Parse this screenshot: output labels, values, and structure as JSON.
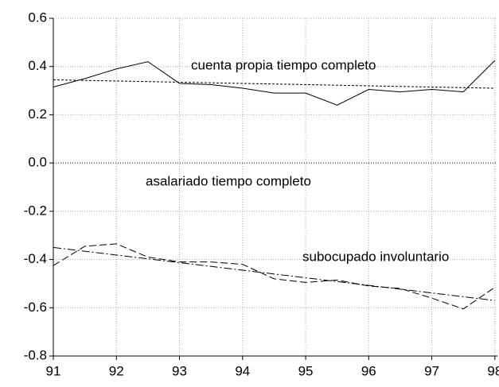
{
  "chart_data": {
    "type": "line",
    "xlim": [
      91,
      98.04
    ],
    "ylim": [
      -0.8,
      0.6
    ],
    "xticks": [
      91,
      92,
      93,
      94,
      95,
      96,
      97,
      98
    ],
    "yticks": [
      {
        "value": -0.8,
        "label": "-0.8"
      },
      {
        "value": -0.6,
        "label": "-0.6"
      },
      {
        "value": -0.4,
        "label": "-0.4"
      },
      {
        "value": -0.2,
        "label": "-0.2"
      },
      {
        "value": 0,
        "label": "0.0"
      },
      {
        "value": 0.2,
        "label": "0.2"
      },
      {
        "value": 0.4,
        "label": "0.4"
      },
      {
        "value": 0.6,
        "label": "0.6"
      }
    ],
    "grid": true,
    "zero_line": true,
    "annotations": [
      "cuenta propia tiempo completo",
      "asalariado tiempo completo",
      "subocupado involuntario"
    ],
    "series": [
      {
        "color": "#000000",
        "style": "solid",
        "x": [
          91,
          91.5,
          92,
          92.5,
          93,
          93.5,
          94,
          94.5,
          95,
          95.5,
          96,
          96.5,
          97,
          97.5,
          98
        ],
        "values": [
          0.315,
          0.35,
          0.39,
          0.42,
          0.33,
          0.325,
          0.31,
          0.29,
          0.29,
          0.24,
          0.305,
          0.295,
          0.305,
          0.295,
          0.425
        ]
      },
      {
        "color": "#000000",
        "style": "dotted",
        "x": [
          91,
          98
        ],
        "values": [
          0.345,
          0.31
        ]
      },
      {
        "color": "#000000",
        "style": "dashed",
        "x": [
          91,
          91.5,
          92,
          92.5,
          93,
          93.5,
          94,
          94.5,
          95,
          95.5,
          96,
          96.5,
          97,
          97.5,
          98
        ],
        "values": [
          -0.425,
          -0.345,
          -0.335,
          -0.39,
          -0.41,
          -0.41,
          -0.42,
          -0.48,
          -0.495,
          -0.485,
          -0.51,
          -0.52,
          -0.56,
          -0.605,
          -0.515
        ]
      },
      {
        "color": "#000000",
        "style": "dashdot",
        "x": [
          91,
          98
        ],
        "values": [
          -0.35,
          -0.57
        ]
      }
    ]
  }
}
